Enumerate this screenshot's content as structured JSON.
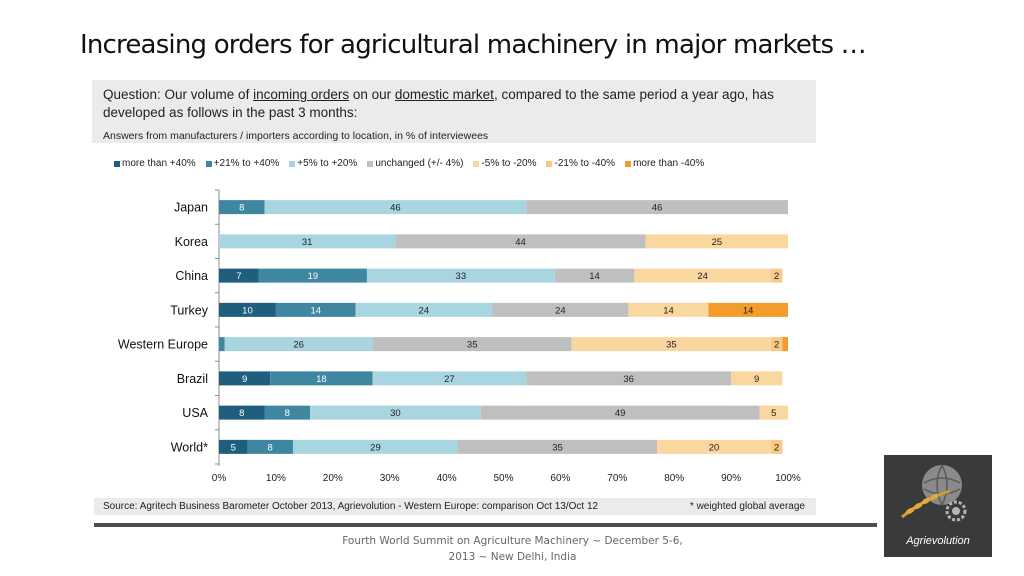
{
  "title": "Increasing orders for agricultural machinery in major markets …",
  "question": {
    "prefix": "Question: Our volume of ",
    "link1": "incoming orders",
    "mid": " on our ",
    "link2": "domestic market",
    "suffix": ", compared to the same period a year ago, has developed as follows in the past 3 months:",
    "subtitle": "Answers from manufacturers / importers according to location, in % of interviewees"
  },
  "chart_data": {
    "type": "bar",
    "orientation": "horizontal",
    "stacked": true,
    "categories": [
      "Japan",
      "Korea",
      "China",
      "Turkey",
      "Western Europe",
      "Brazil",
      "USA",
      "World*"
    ],
    "series": [
      {
        "name": "more than +40%",
        "color": "#1f5e7c",
        "values": [
          0,
          0,
          7,
          10,
          0,
          9,
          8,
          5
        ]
      },
      {
        "name": "+21% to +40%",
        "color": "#3f87a0",
        "values": [
          8,
          0,
          19,
          14,
          1,
          18,
          8,
          8
        ]
      },
      {
        "name": "+5% to +20%",
        "color": "#a9d5e1",
        "values": [
          46,
          31,
          33,
          24,
          26,
          27,
          30,
          29
        ]
      },
      {
        "name": "unchanged (+/- 4%)",
        "color": "#bfbfbf",
        "values": [
          46,
          44,
          14,
          24,
          35,
          36,
          49,
          35
        ]
      },
      {
        "name": "-5% to -20%",
        "color": "#fbd7a0",
        "values": [
          0,
          25,
          24,
          14,
          35,
          9,
          5,
          20
        ]
      },
      {
        "name": "-21% to -40%",
        "color": "#f9c988",
        "values": [
          0,
          0,
          2,
          0,
          2,
          0,
          0,
          2
        ]
      },
      {
        "name": "more than -40%",
        "color": "#f39c2b",
        "values": [
          0,
          0,
          0,
          14,
          1,
          0,
          0,
          0
        ]
      }
    ],
    "labels": [
      [
        null,
        "8",
        "46",
        "46",
        null,
        null,
        null
      ],
      [
        null,
        null,
        "31",
        "44",
        "25",
        null,
        null
      ],
      [
        "7",
        "19",
        "33",
        "14",
        "24",
        "2",
        null
      ],
      [
        "10",
        "14",
        "24",
        "24",
        "14",
        null,
        "14"
      ],
      [
        null,
        null,
        "26",
        "35",
        "35",
        "2",
        null
      ],
      [
        "9",
        "18",
        "27",
        "36",
        "9",
        null,
        null
      ],
      [
        "8",
        "8",
        "30",
        "49",
        "5",
        null,
        null
      ],
      [
        "5",
        "8",
        "29",
        "35",
        "20",
        "2",
        null
      ]
    ],
    "xlim": [
      0,
      100
    ],
    "xticks": [
      "0%",
      "10%",
      "20%",
      "30%",
      "40%",
      "50%",
      "60%",
      "70%",
      "80%",
      "90%",
      "100%"
    ],
    "legend_position": "top"
  },
  "source": "Source: Agritech Business Barometer October 2013, Agrievolution - Western Europe: comparison Oct 13/Oct 12",
  "note": "* weighted global average",
  "footer": "Fourth World Summit on Agriculture Machinery ~ December 5-6, 2013 ~ New Delhi, India",
  "logo": {
    "name": "Agrievolution",
    "icon": "globe-wheat-gear-icon"
  }
}
